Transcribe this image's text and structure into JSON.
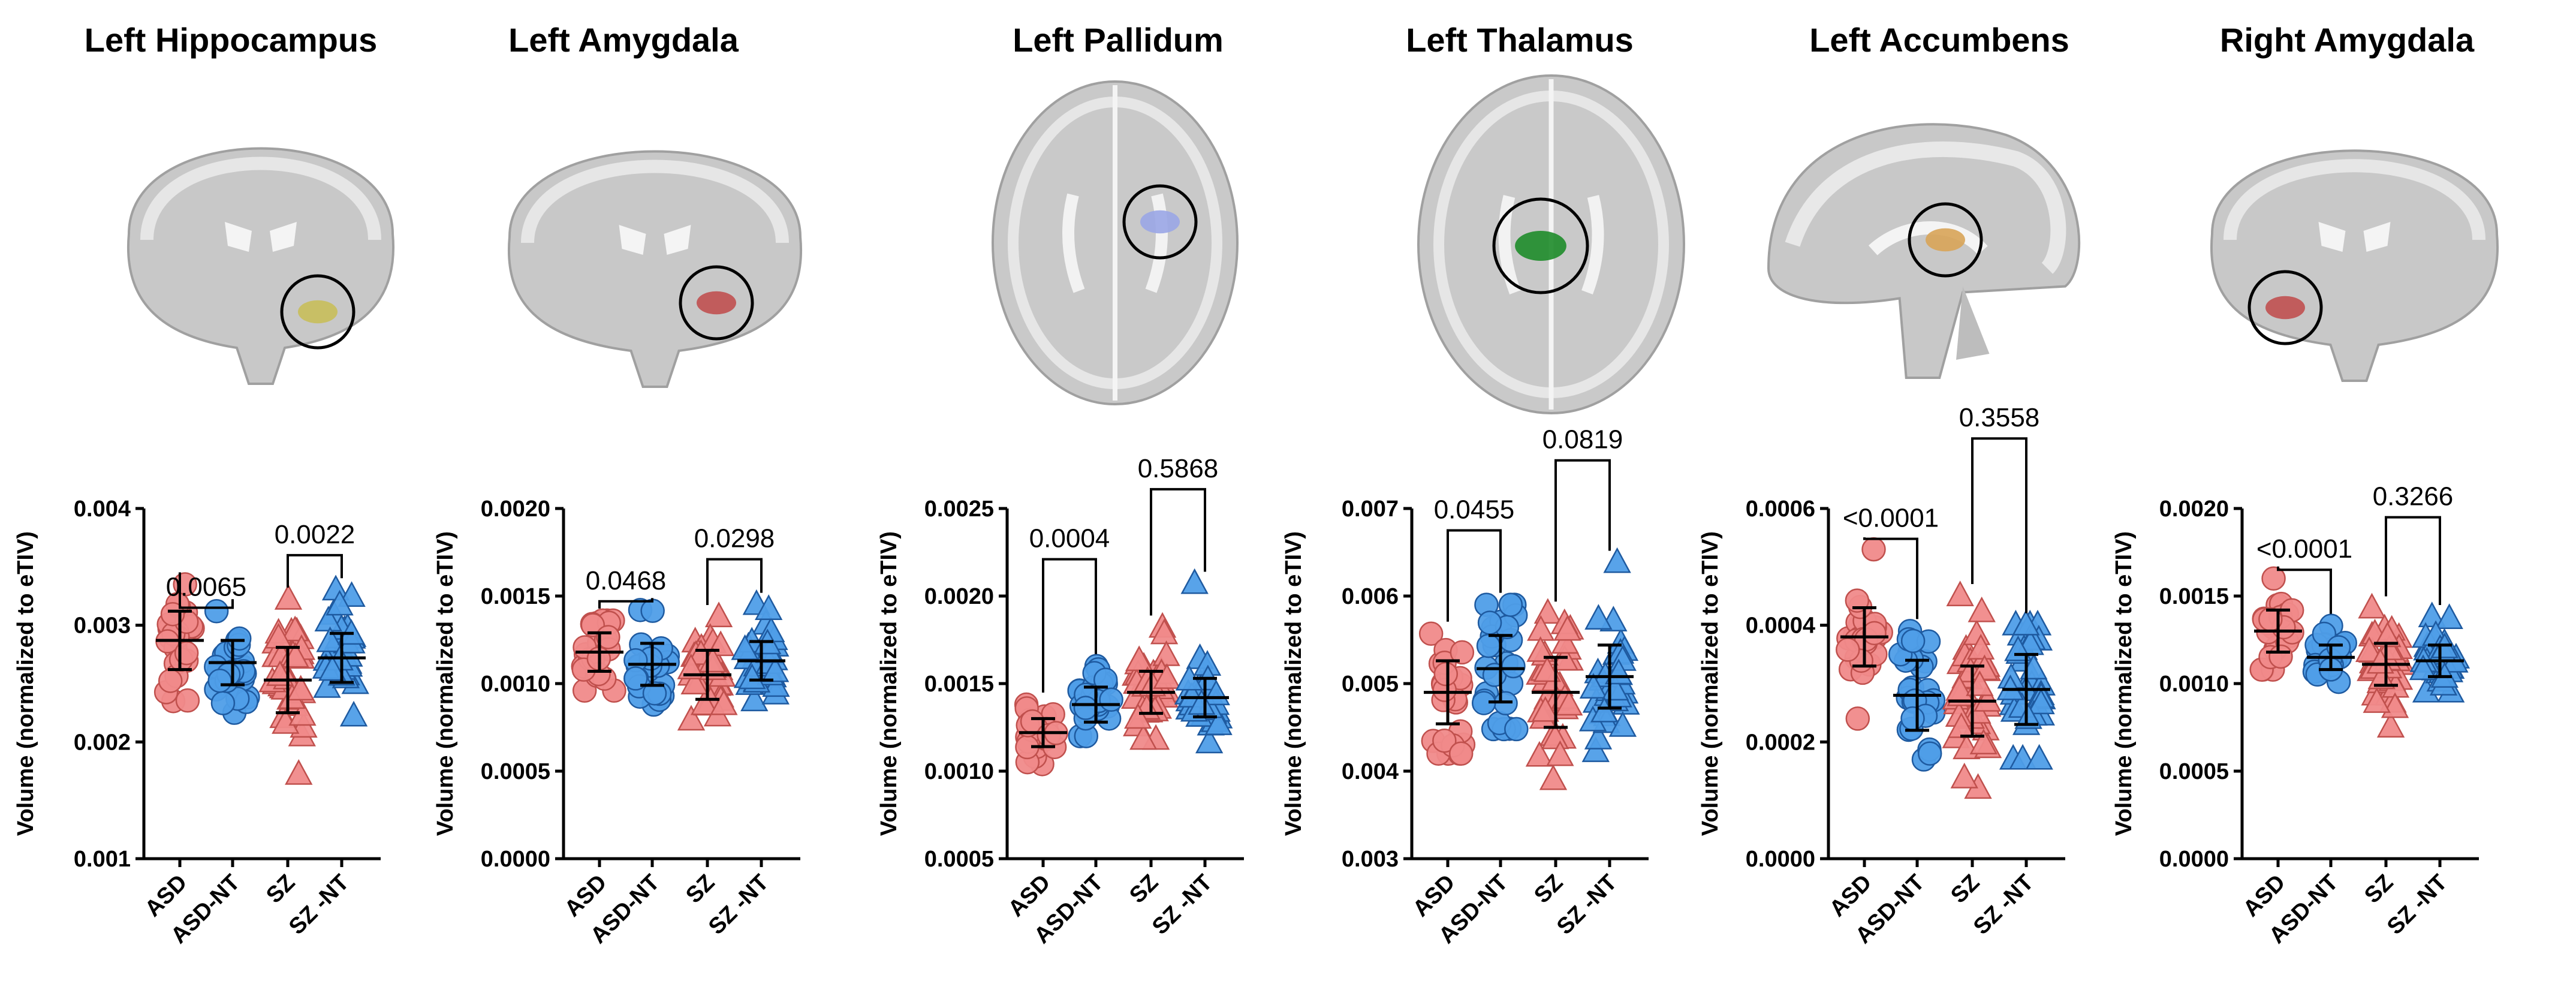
{
  "colors": {
    "red": "#f08a8a",
    "red_edge": "#c0504d",
    "blue": "#4f9ee8",
    "blue_edge": "#1e5aa0"
  },
  "chart_data": [
    {
      "type": "scatter",
      "title": "Left Hippocampus",
      "ylabel": "Volume (normalized to eTIV)",
      "ylim": [
        0.001,
        0.004
      ],
      "yticks": [
        "0.001",
        "0.002",
        "0.003",
        "0.004"
      ],
      "tick_values": [
        0.001,
        0.002,
        0.003,
        0.004
      ],
      "categories": [
        "ASD",
        "ASD-NT",
        "SZ",
        "SZ -NT"
      ],
      "brain": {
        "view": "coronal",
        "roi_color": "#c8be5a"
      },
      "groups": [
        {
          "label": "ASD",
          "color": "red",
          "marker": "circle",
          "mean": 0.00287,
          "sd": 0.00025,
          "min": 0.00235,
          "max": 0.00335,
          "n": 26
        },
        {
          "label": "ASD-NT",
          "color": "blue",
          "marker": "circle",
          "mean": 0.00268,
          "sd": 0.00019,
          "min": 0.00225,
          "max": 0.00312,
          "n": 26
        },
        {
          "label": "SZ",
          "color": "red",
          "marker": "triangle",
          "mean": 0.00253,
          "sd": 0.00028,
          "min": 0.00172,
          "max": 0.00322,
          "n": 36
        },
        {
          "label": "SZ -NT",
          "color": "blue",
          "marker": "triangle",
          "mean": 0.00272,
          "sd": 0.00021,
          "min": 0.00222,
          "max": 0.0033,
          "n": 34
        }
      ],
      "comparisons": [
        {
          "p": "0.0065",
          "from": 0,
          "to": 1,
          "top": 0.00315
        },
        {
          "p": "0.0022",
          "from": 2,
          "to": 3,
          "top": 0.0036
        }
      ]
    },
    {
      "type": "scatter",
      "title": "Left Amygdala",
      "ylabel": "Volume (normalized to eTIV)",
      "ylim": [
        0,
        0.002
      ],
      "yticks": [
        "0.0000",
        "0.0005",
        "0.0010",
        "0.0015",
        "0.0020"
      ],
      "tick_values": [
        0,
        0.0005,
        0.001,
        0.0015,
        0.002
      ],
      "categories": [
        "ASD",
        "ASD-NT",
        "SZ",
        "SZ -NT"
      ],
      "brain": {
        "view": "coronal",
        "roi_color": "#c05050"
      },
      "groups": [
        {
          "label": "ASD",
          "color": "red",
          "marker": "circle",
          "mean": 0.00118,
          "sd": 0.00011,
          "min": 0.00096,
          "max": 0.00136,
          "n": 26
        },
        {
          "label": "ASD-NT",
          "color": "blue",
          "marker": "circle",
          "mean": 0.00111,
          "sd": 0.00012,
          "min": 0.00088,
          "max": 0.00142,
          "n": 26
        },
        {
          "label": "SZ",
          "color": "red",
          "marker": "triangle",
          "mean": 0.00105,
          "sd": 0.00014,
          "min": 0.00079,
          "max": 0.00138,
          "n": 36
        },
        {
          "label": "SZ -NT",
          "color": "blue",
          "marker": "triangle",
          "mean": 0.00113,
          "sd": 0.00011,
          "min": 0.0009,
          "max": 0.00145,
          "n": 34
        }
      ],
      "comparisons": [
        {
          "p": "0.0468",
          "from": 0,
          "to": 1,
          "top": 0.00147
        },
        {
          "p": "0.0298",
          "from": 2,
          "to": 3,
          "top": 0.00171
        }
      ]
    },
    {
      "type": "scatter",
      "title": "Left Pallidum",
      "ylabel": "Volume (normalized to eTIV)",
      "ylim": [
        0.0005,
        0.0025
      ],
      "yticks": [
        "0.0005",
        "0.0010",
        "0.0015",
        "0.0020",
        "0.0025"
      ],
      "tick_values": [
        0.0005,
        0.001,
        0.0015,
        0.002,
        0.0025
      ],
      "categories": [
        "ASD",
        "ASD-NT",
        "SZ",
        "SZ -NT"
      ],
      "brain": {
        "view": "axial",
        "roi_color": "#9aa6e6"
      },
      "groups": [
        {
          "label": "ASD",
          "color": "red",
          "marker": "circle",
          "mean": 0.00122,
          "sd": 8e-05,
          "min": 0.00104,
          "max": 0.00138,
          "n": 26
        },
        {
          "label": "ASD-NT",
          "color": "blue",
          "marker": "circle",
          "mean": 0.00138,
          "sd": 0.0001,
          "min": 0.0012,
          "max": 0.0016,
          "n": 26
        },
        {
          "label": "SZ",
          "color": "red",
          "marker": "triangle",
          "mean": 0.00145,
          "sd": 0.00012,
          "min": 0.00118,
          "max": 0.00182,
          "n": 36
        },
        {
          "label": "SZ -NT",
          "color": "blue",
          "marker": "triangle",
          "mean": 0.00142,
          "sd": 0.00011,
          "min": 0.00116,
          "max": 0.00207,
          "n": 34
        }
      ],
      "comparisons": [
        {
          "p": "0.0004",
          "from": 0,
          "to": 1,
          "top": 0.00221
        },
        {
          "p": "0.5868",
          "from": 2,
          "to": 3,
          "top": 0.00261
        }
      ]
    },
    {
      "type": "scatter",
      "title": "Left Thalamus",
      "ylabel": "Volume (normalized to eTIV)",
      "ylim": [
        0.003,
        0.007
      ],
      "yticks": [
        "0.003",
        "0.004",
        "0.005",
        "0.006",
        "0.007"
      ],
      "tick_values": [
        0.003,
        0.004,
        0.005,
        0.006,
        0.007
      ],
      "categories": [
        "ASD",
        "ASD-NT",
        "SZ",
        "SZ -NT"
      ],
      "brain": {
        "view": "axial",
        "roi_color": "#1e8c2a"
      },
      "groups": [
        {
          "label": "ASD",
          "color": "red",
          "marker": "circle",
          "mean": 0.0049,
          "sd": 0.00036,
          "min": 0.0042,
          "max": 0.00557,
          "n": 26
        },
        {
          "label": "ASD-NT",
          "color": "blue",
          "marker": "circle",
          "mean": 0.00517,
          "sd": 0.00038,
          "min": 0.00448,
          "max": 0.0059,
          "n": 26
        },
        {
          "label": "SZ",
          "color": "red",
          "marker": "triangle",
          "mean": 0.0049,
          "sd": 0.0004,
          "min": 0.0039,
          "max": 0.0058,
          "n": 36
        },
        {
          "label": "SZ -NT",
          "color": "blue",
          "marker": "triangle",
          "mean": 0.00508,
          "sd": 0.00036,
          "min": 0.00422,
          "max": 0.00638,
          "n": 34
        }
      ],
      "comparisons": [
        {
          "p": "0.0455",
          "from": 0,
          "to": 1,
          "top": 0.00675
        },
        {
          "p": "0.0819",
          "from": 2,
          "to": 3,
          "top": 0.00755
        }
      ]
    },
    {
      "type": "scatter",
      "title": "Left Accumbens",
      "ylabel": "Volume (normalized to eTIV)",
      "ylim": [
        0,
        0.0006
      ],
      "yticks": [
        "0.0000",
        "0.0002",
        "0.0004",
        "0.0006"
      ],
      "tick_values": [
        0,
        0.0002,
        0.0004,
        0.0006
      ],
      "categories": [
        "ASD",
        "ASD-NT",
        "SZ",
        "SZ -NT"
      ],
      "brain": {
        "view": "sagittal",
        "roi_color": "#d8a458"
      },
      "groups": [
        {
          "label": "ASD",
          "color": "red",
          "marker": "circle",
          "mean": 0.00038,
          "sd": 5e-05,
          "min": 0.00024,
          "max": 0.00053,
          "n": 26
        },
        {
          "label": "ASD-NT",
          "color": "blue",
          "marker": "circle",
          "mean": 0.00028,
          "sd": 6e-05,
          "min": 0.00017,
          "max": 0.00039,
          "n": 26
        },
        {
          "label": "SZ",
          "color": "red",
          "marker": "triangle",
          "mean": 0.00027,
          "sd": 6e-05,
          "min": 0.00012,
          "max": 0.00045,
          "n": 36
        },
        {
          "label": "SZ -NT",
          "color": "blue",
          "marker": "triangle",
          "mean": 0.00029,
          "sd": 6e-05,
          "min": 0.00017,
          "max": 0.0004,
          "n": 34
        }
      ],
      "comparisons": [
        {
          "p": "<0.0001",
          "from": 0,
          "to": 1,
          "top": 0.000548
        },
        {
          "p": "0.3558",
          "from": 2,
          "to": 3,
          "top": 0.00072
        }
      ]
    },
    {
      "type": "scatter",
      "title": "Right Amygdala",
      "ylabel": "Volume (normalized to eTIV)",
      "ylim": [
        0,
        0.002
      ],
      "yticks": [
        "0.0000",
        "0.0005",
        "0.0010",
        "0.0015",
        "0.0020"
      ],
      "tick_values": [
        0,
        0.0005,
        0.001,
        0.0015,
        0.002
      ],
      "categories": [
        "ASD",
        "ASD-NT",
        "SZ",
        "SZ -NT"
      ],
      "brain": {
        "view": "coronal",
        "roi_color": "#c05050"
      },
      "groups": [
        {
          "label": "ASD",
          "color": "red",
          "marker": "circle",
          "mean": 0.0013,
          "sd": 0.00012,
          "min": 0.00108,
          "max": 0.0016,
          "n": 26
        },
        {
          "label": "ASD-NT",
          "color": "blue",
          "marker": "circle",
          "mean": 0.00115,
          "sd": 7e-05,
          "min": 0.00101,
          "max": 0.00133,
          "n": 26
        },
        {
          "label": "SZ",
          "color": "red",
          "marker": "triangle",
          "mean": 0.00111,
          "sd": 0.00012,
          "min": 0.00075,
          "max": 0.00143,
          "n": 36
        },
        {
          "label": "SZ -NT",
          "color": "blue",
          "marker": "triangle",
          "mean": 0.00113,
          "sd": 9e-05,
          "min": 0.00095,
          "max": 0.00138,
          "n": 34
        }
      ],
      "comparisons": [
        {
          "p": "<0.0001",
          "from": 0,
          "to": 1,
          "top": 0.00165
        },
        {
          "p": "0.3266",
          "from": 2,
          "to": 3,
          "top": 0.00195
        }
      ]
    }
  ]
}
